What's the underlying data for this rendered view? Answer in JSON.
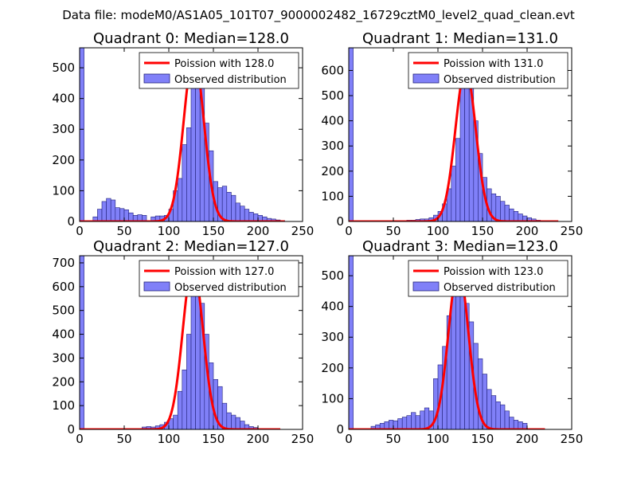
{
  "figure": {
    "suptitle": "Data file: modeM0/AS1A05_101T07_9000002482_16729cztM0_level2_quad_clean.evt"
  },
  "colors": {
    "bar_fill": "#8080f8",
    "bar_edge": "#20207a",
    "model_line": "#ff0000",
    "axes": "#000000"
  },
  "chart_data": [
    {
      "type": "bar",
      "title": "Quadrant 0: Median=128.0",
      "median": 128.0,
      "xlim": [
        0,
        250
      ],
      "ylim": [
        0,
        565
      ],
      "xticks": [
        0,
        50,
        100,
        150,
        200,
        250
      ],
      "yticks": [
        0,
        100,
        200,
        300,
        400,
        500
      ],
      "bin_width": 5,
      "legend": {
        "model": "Poission with 128.0",
        "observed": "Observed distribution",
        "location": "upper right"
      },
      "bins": [
        [
          0,
          565
        ],
        [
          5,
          0
        ],
        [
          10,
          0
        ],
        [
          15,
          15
        ],
        [
          20,
          40
        ],
        [
          25,
          65
        ],
        [
          30,
          75
        ],
        [
          35,
          70
        ],
        [
          40,
          45
        ],
        [
          45,
          42
        ],
        [
          50,
          38
        ],
        [
          55,
          28
        ],
        [
          60,
          20
        ],
        [
          65,
          22
        ],
        [
          70,
          20
        ],
        [
          75,
          0
        ],
        [
          80,
          15
        ],
        [
          85,
          18
        ],
        [
          90,
          18
        ],
        [
          95,
          20
        ],
        [
          100,
          40
        ],
        [
          105,
          100
        ],
        [
          110,
          140
        ],
        [
          115,
          250
        ],
        [
          120,
          305
        ],
        [
          125,
          480
        ],
        [
          130,
          520
        ],
        [
          135,
          460
        ],
        [
          140,
          320
        ],
        [
          145,
          230
        ],
        [
          150,
          130
        ],
        [
          155,
          110
        ],
        [
          160,
          115
        ],
        [
          165,
          95
        ],
        [
          170,
          85
        ],
        [
          175,
          60
        ],
        [
          180,
          50
        ],
        [
          185,
          40
        ],
        [
          190,
          30
        ],
        [
          195,
          25
        ],
        [
          200,
          20
        ],
        [
          205,
          15
        ],
        [
          210,
          10
        ],
        [
          215,
          8
        ],
        [
          220,
          5
        ],
        [
          225,
          3
        ]
      ],
      "model_peak": 540,
      "model_sigma": 11.3,
      "model_x_range": [
        0,
        230
      ]
    },
    {
      "type": "bar",
      "title": "Quadrant 1: Median=131.0",
      "median": 131.0,
      "xlim": [
        0,
        250
      ],
      "ylim": [
        0,
        690
      ],
      "xticks": [
        0,
        50,
        100,
        150,
        200,
        250
      ],
      "yticks": [
        0,
        100,
        200,
        300,
        400,
        500,
        600
      ],
      "bin_width": 5,
      "legend": {
        "model": "Poission with 131.0",
        "observed": "Observed distribution",
        "location": "upper right"
      },
      "bins": [
        [
          0,
          690
        ],
        [
          65,
          5
        ],
        [
          70,
          5
        ],
        [
          75,
          8
        ],
        [
          80,
          10
        ],
        [
          85,
          10
        ],
        [
          90,
          15
        ],
        [
          95,
          25
        ],
        [
          100,
          40
        ],
        [
          105,
          70
        ],
        [
          110,
          130
        ],
        [
          115,
          220
        ],
        [
          120,
          330
        ],
        [
          125,
          560
        ],
        [
          130,
          610
        ],
        [
          135,
          530
        ],
        [
          140,
          400
        ],
        [
          145,
          270
        ],
        [
          150,
          175
        ],
        [
          155,
          130
        ],
        [
          160,
          110
        ],
        [
          165,
          100
        ],
        [
          170,
          80
        ],
        [
          175,
          65
        ],
        [
          180,
          50
        ],
        [
          185,
          40
        ],
        [
          190,
          30
        ],
        [
          195,
          22
        ],
        [
          200,
          15
        ],
        [
          205,
          10
        ],
        [
          210,
          5
        ]
      ],
      "model_peak": 605,
      "model_sigma": 11.4,
      "model_x_range": [
        0,
        235
      ]
    },
    {
      "type": "bar",
      "title": "Quadrant 2: Median=127.0",
      "median": 127.0,
      "xlim": [
        0,
        250
      ],
      "ylim": [
        0,
        730
      ],
      "xticks": [
        0,
        50,
        100,
        150,
        200,
        250
      ],
      "yticks": [
        0,
        100,
        200,
        300,
        400,
        500,
        600,
        700
      ],
      "bin_width": 5,
      "legend": {
        "model": "Poission with 127.0",
        "observed": "Observed distribution",
        "location": "upper right"
      },
      "bins": [
        [
          0,
          730
        ],
        [
          70,
          10
        ],
        [
          75,
          12
        ],
        [
          80,
          10
        ],
        [
          85,
          15
        ],
        [
          90,
          20
        ],
        [
          95,
          30
        ],
        [
          100,
          45
        ],
        [
          105,
          60
        ],
        [
          110,
          160
        ],
        [
          115,
          250
        ],
        [
          120,
          400
        ],
        [
          125,
          660
        ],
        [
          130,
          640
        ],
        [
          135,
          530
        ],
        [
          140,
          400
        ],
        [
          145,
          280
        ],
        [
          150,
          210
        ],
        [
          155,
          180
        ],
        [
          160,
          110
        ],
        [
          165,
          70
        ],
        [
          170,
          60
        ],
        [
          175,
          50
        ],
        [
          180,
          35
        ],
        [
          185,
          20
        ],
        [
          190,
          12
        ],
        [
          195,
          8
        ]
      ],
      "model_peak": 690,
      "model_sigma": 11.3,
      "model_x_range": [
        0,
        225
      ]
    },
    {
      "type": "bar",
      "title": "Quadrant 3: Median=123.0",
      "median": 123.0,
      "xlim": [
        0,
        250
      ],
      "ylim": [
        0,
        565
      ],
      "xticks": [
        0,
        50,
        100,
        150,
        200,
        250
      ],
      "yticks": [
        0,
        100,
        200,
        300,
        400,
        500
      ],
      "bin_width": 5,
      "legend": {
        "model": "Poission with 123.0",
        "observed": "Observed distribution",
        "location": "upper right"
      },
      "bins": [
        [
          0,
          565
        ],
        [
          25,
          10
        ],
        [
          30,
          15
        ],
        [
          35,
          20
        ],
        [
          40,
          25
        ],
        [
          45,
          30
        ],
        [
          50,
          28
        ],
        [
          55,
          35
        ],
        [
          60,
          40
        ],
        [
          65,
          45
        ],
        [
          70,
          55
        ],
        [
          75,
          45
        ],
        [
          80,
          60
        ],
        [
          85,
          70
        ],
        [
          90,
          60
        ],
        [
          95,
          165
        ],
        [
          100,
          210
        ],
        [
          105,
          270
        ],
        [
          110,
          370
        ],
        [
          115,
          470
        ],
        [
          120,
          490
        ],
        [
          125,
          480
        ],
        [
          130,
          410
        ],
        [
          135,
          350
        ],
        [
          140,
          280
        ],
        [
          145,
          230
        ],
        [
          150,
          180
        ],
        [
          155,
          130
        ],
        [
          160,
          110
        ],
        [
          165,
          90
        ],
        [
          170,
          80
        ],
        [
          175,
          60
        ],
        [
          180,
          40
        ],
        [
          185,
          30
        ],
        [
          190,
          25
        ],
        [
          195,
          20
        ]
      ],
      "model_peak": 525,
      "model_sigma": 11.1,
      "model_x_range": [
        0,
        220
      ]
    }
  ]
}
